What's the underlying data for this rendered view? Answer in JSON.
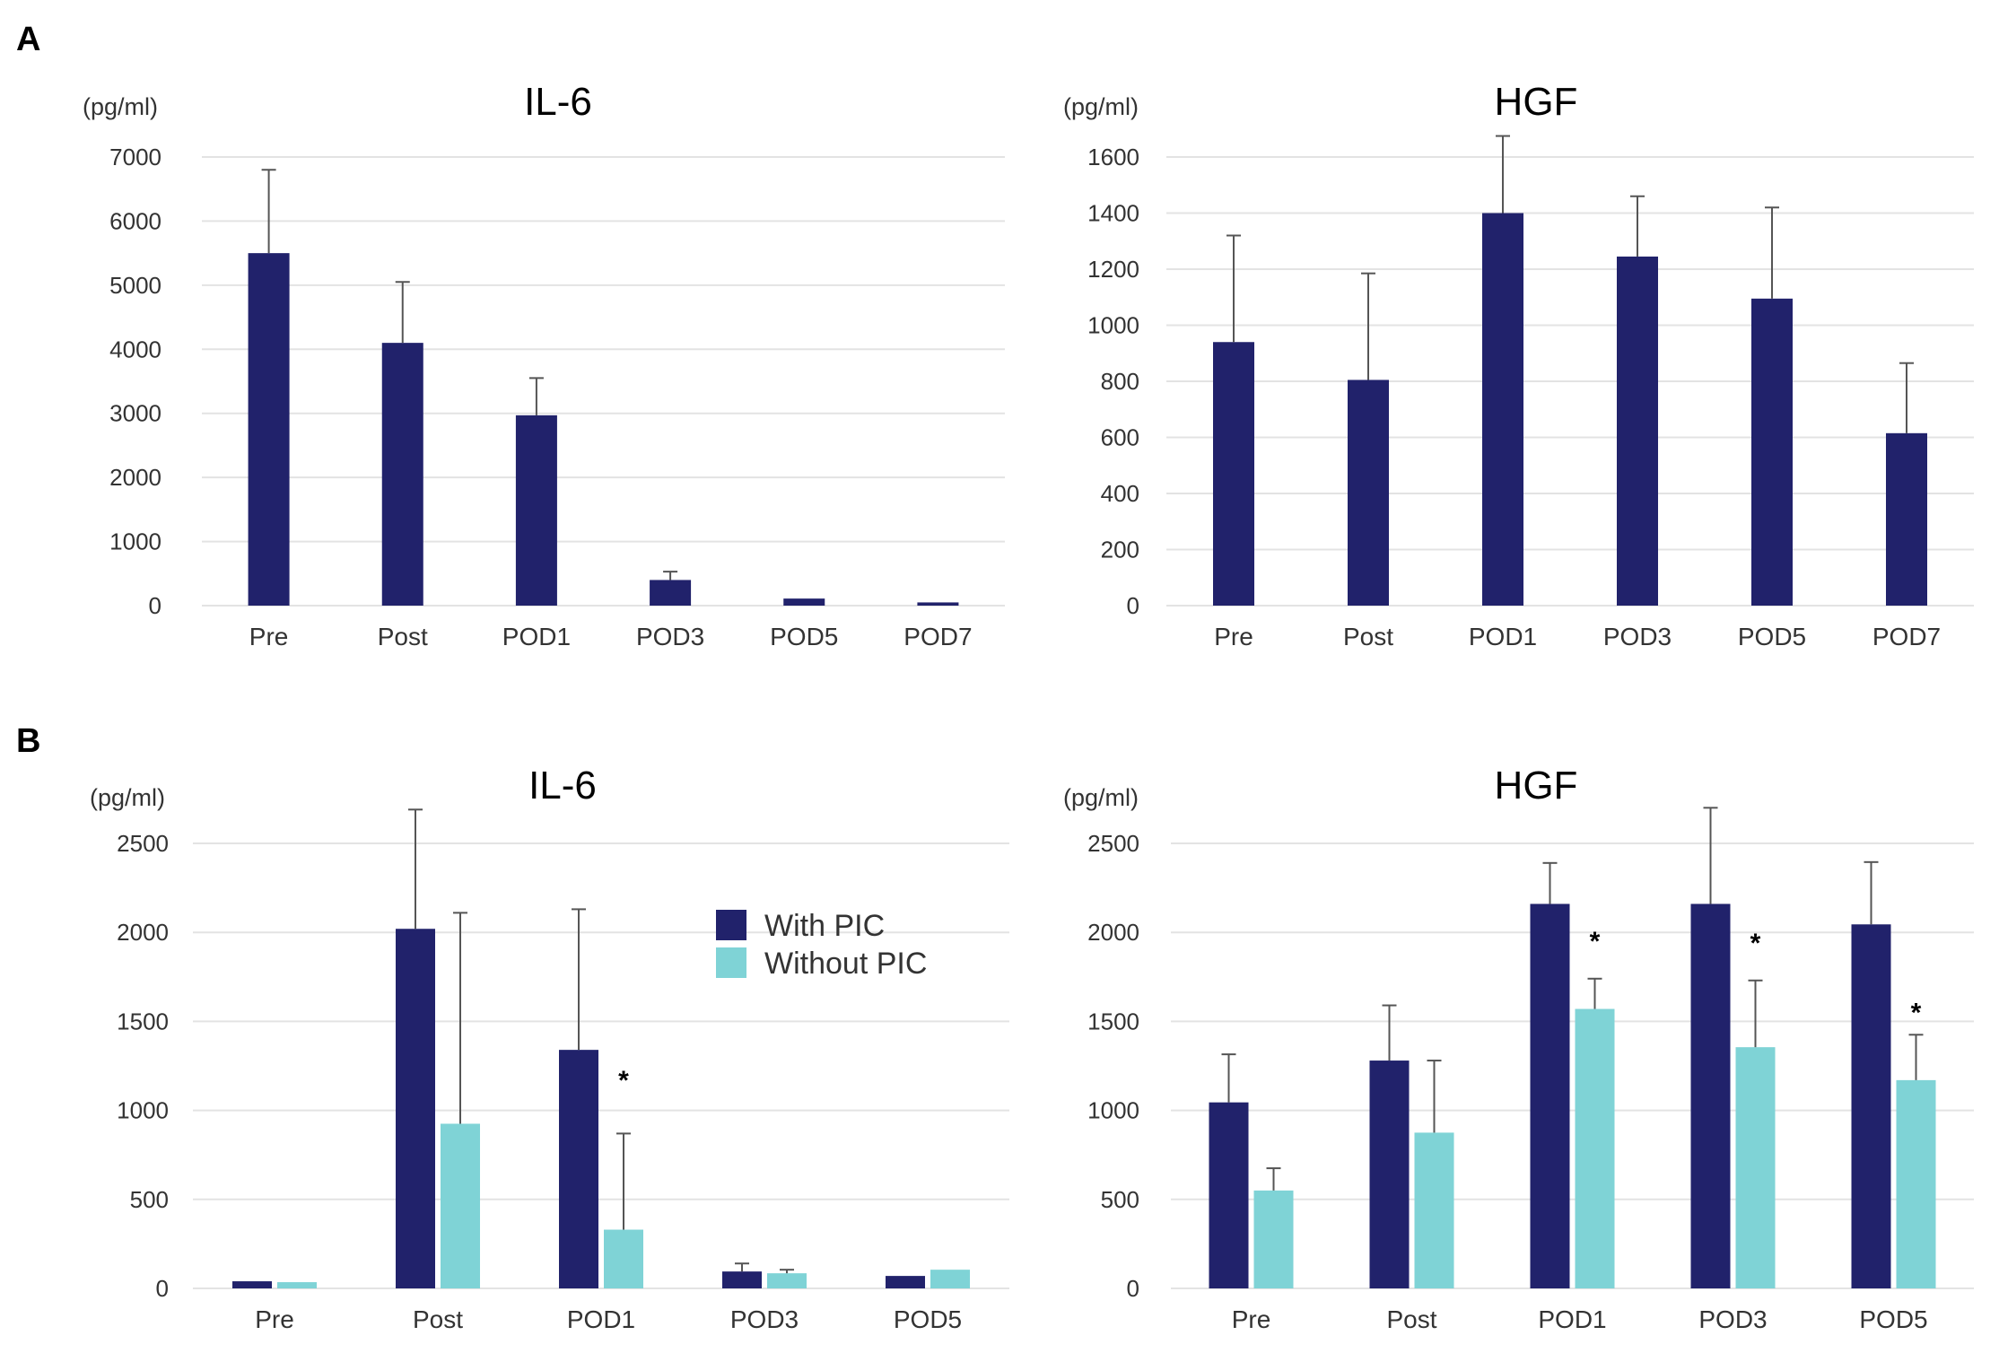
{
  "panels": [
    {
      "label": "A"
    },
    {
      "label": "B"
    }
  ],
  "legend": {
    "with_pic": "With PIC",
    "without_pic": "Without PIC"
  },
  "colors": {
    "with_pic": "#21226b",
    "without_pic": "#7fd3d6",
    "grid": "#e3e3e3",
    "error_bar": "#555555"
  },
  "chart_data": [
    {
      "type": "bar",
      "panel": "A",
      "title": "IL-6",
      "ylabel": "(pg/ml)",
      "ylim": [
        0,
        7000
      ],
      "yticks": [
        0,
        1000,
        2000,
        3000,
        4000,
        5000,
        6000,
        7000
      ],
      "categories": [
        "Pre",
        "Post",
        "POD1",
        "POD3",
        "POD5",
        "POD7"
      ],
      "series": [
        {
          "name": "IL-6",
          "values": [
            5500,
            4100,
            2970,
            400,
            110,
            50
          ],
          "errors": [
            1300,
            950,
            580,
            130,
            0,
            0
          ]
        }
      ]
    },
    {
      "type": "bar",
      "panel": "A",
      "title": "HGF",
      "ylabel": "(pg/ml)",
      "ylim": [
        0,
        1600
      ],
      "yticks": [
        0,
        200,
        400,
        600,
        800,
        1000,
        1200,
        1400,
        1600
      ],
      "categories": [
        "Pre",
        "Post",
        "POD1",
        "POD3",
        "POD5",
        "POD7"
      ],
      "series": [
        {
          "name": "HGF",
          "values": [
            940,
            805,
            1400,
            1245,
            1095,
            615
          ],
          "errors": [
            380,
            380,
            275,
            215,
            325,
            250
          ]
        }
      ]
    },
    {
      "type": "bar",
      "panel": "B",
      "title": "IL-6",
      "ylabel": "(pg/ml)",
      "ylim": [
        0,
        2500
      ],
      "yticks": [
        0,
        500,
        1000,
        1500,
        2000,
        2500
      ],
      "categories": [
        "Pre",
        "Post",
        "POD1",
        "POD3",
        "POD5"
      ],
      "series": [
        {
          "name": "With PIC",
          "values": [
            40,
            2020,
            1340,
            95,
            70
          ],
          "errors": [
            0,
            670,
            790,
            45,
            0
          ]
        },
        {
          "name": "Without PIC",
          "values": [
            35,
            925,
            330,
            85,
            105
          ],
          "errors": [
            0,
            1185,
            540,
            20,
            0
          ]
        }
      ],
      "annotations": [
        {
          "category": "POD1",
          "series": "Without PIC",
          "text": "*",
          "value": 1190
        }
      ]
    },
    {
      "type": "bar",
      "panel": "B",
      "title": "HGF",
      "ylabel": "(pg/ml)",
      "ylim": [
        0,
        2500
      ],
      "yticks": [
        0,
        500,
        1000,
        1500,
        2000,
        2500
      ],
      "categories": [
        "Pre",
        "Post",
        "POD1",
        "POD3",
        "POD5"
      ],
      "series": [
        {
          "name": "With PIC",
          "values": [
            1045,
            1280,
            2160,
            2160,
            2045
          ],
          "errors": [
            270,
            310,
            230,
            540,
            350
          ]
        },
        {
          "name": "Without PIC",
          "values": [
            550,
            875,
            1570,
            1355,
            1170
          ],
          "errors": [
            125,
            405,
            170,
            375,
            255
          ]
        }
      ],
      "annotations": [
        {
          "category": "POD1",
          "series": "Without PIC",
          "text": "*",
          "value": 1970
        },
        {
          "category": "POD3",
          "series": "Without PIC",
          "text": "*",
          "value": 1960
        },
        {
          "category": "POD5",
          "series": "Without PIC",
          "text": "*",
          "value": 1570
        }
      ]
    }
  ]
}
